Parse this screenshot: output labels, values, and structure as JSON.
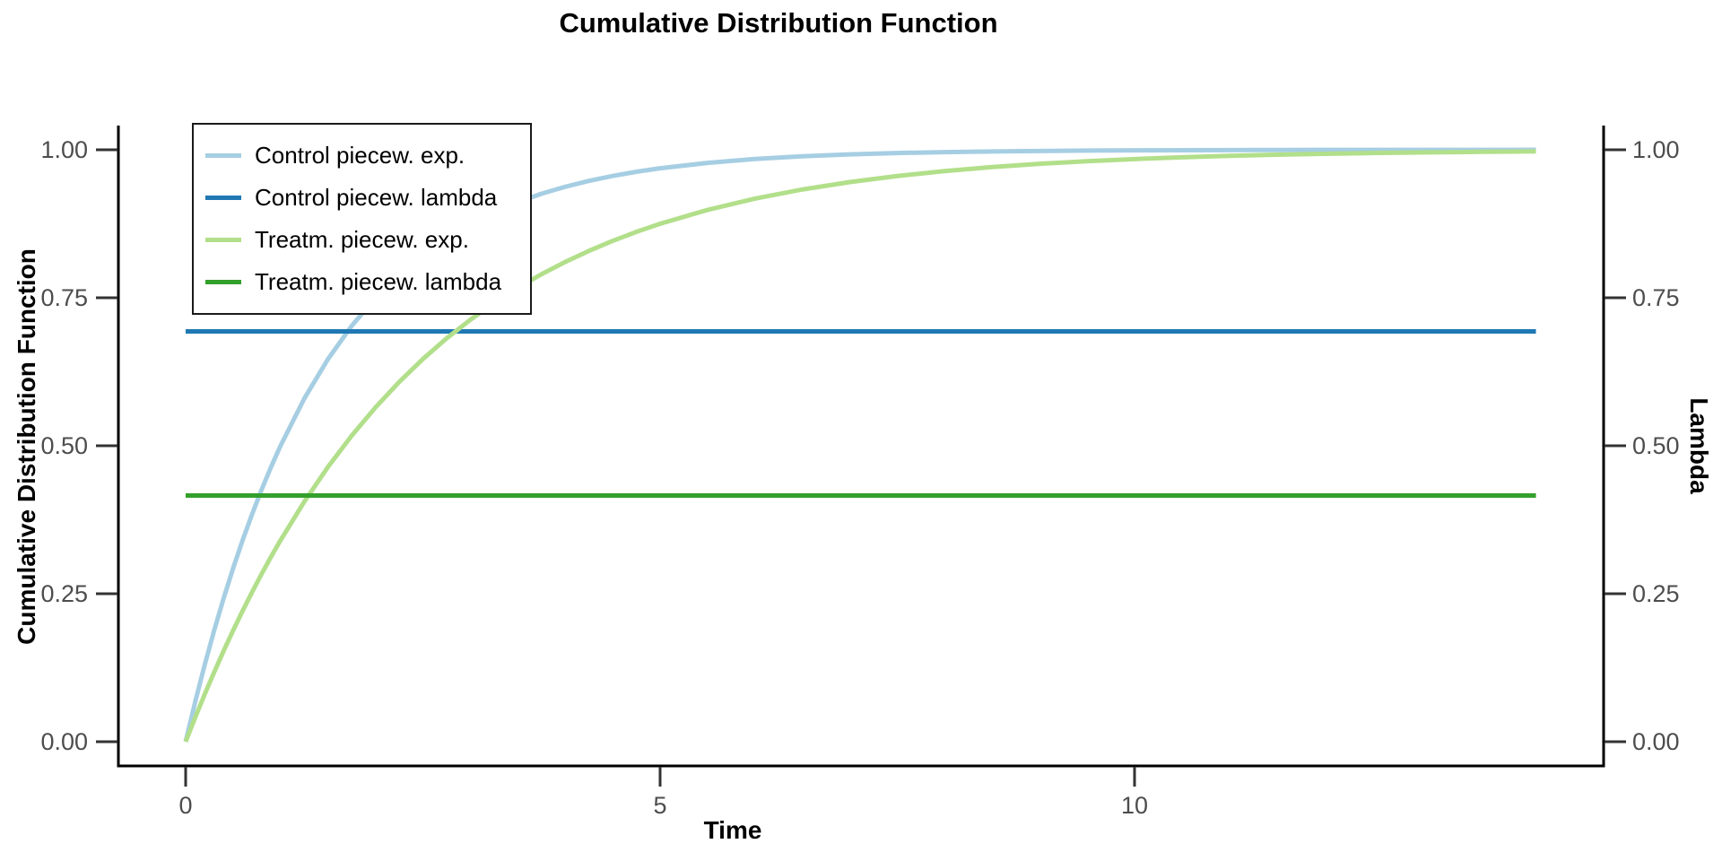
{
  "chart_data": {
    "type": "line",
    "title": "Cumulative Distribution Function",
    "xlabel": "Time",
    "ylabel_left": "Cumulative Distribution Function",
    "ylabel_right": "Lambda",
    "grid": false,
    "legend_position": "top-left",
    "xlim": [
      -0.71,
      14.95
    ],
    "ylim": [
      -0.041,
      1.041
    ],
    "x_ticks": {
      "values": [
        0,
        5,
        10
      ],
      "labels": [
        "0",
        "5",
        "10"
      ]
    },
    "y_ticks": {
      "values": [
        0,
        0.25,
        0.5,
        0.75,
        1.0
      ],
      "labels": [
        "0.00",
        "0.25",
        "0.50",
        "0.75",
        "1.00"
      ]
    },
    "x_end": 14.23,
    "x": [
      0,
      0.1,
      0.2,
      0.3,
      0.4,
      0.5,
      0.6,
      0.7,
      0.8,
      0.9,
      1,
      1.25,
      1.5,
      1.75,
      2,
      2.25,
      2.5,
      2.75,
      3,
      3.25,
      3.5,
      3.75,
      4,
      4.25,
      4.5,
      4.75,
      5,
      5.5,
      6,
      6.5,
      7,
      7.5,
      8,
      8.5,
      9,
      9.5,
      10,
      10.5,
      11,
      11.5,
      12,
      12.5,
      13,
      13.5,
      14,
      14.23
    ],
    "series": [
      {
        "id": "control-exp",
        "name": "Control piecew. exp.",
        "color": "#a6cee3",
        "values": [
          0.0,
          0.067,
          0.1294,
          0.1877,
          0.2421,
          0.2929,
          0.3402,
          0.3843,
          0.4257,
          0.4641,
          0.5,
          0.5796,
          0.6464,
          0.7025,
          0.75,
          0.7897,
          0.8232,
          0.8513,
          0.875,
          0.8949,
          0.9116,
          0.9257,
          0.9375,
          0.9474,
          0.9558,
          0.9629,
          0.9687,
          0.9779,
          0.9844,
          0.989,
          0.9922,
          0.9945,
          0.9961,
          0.9972,
          0.998,
          0.9986,
          0.999,
          0.9993,
          0.9995,
          0.9996,
          0.9998,
          0.9998,
          0.9999,
          0.9999,
          0.9999,
          1.0
        ]
      },
      {
        "id": "control-lambda",
        "name": "Control piecew. lambda",
        "color": "#1f78b4",
        "constant": 0.6931
      },
      {
        "id": "treatm-exp",
        "name": "Treatm. piecew. exp.",
        "color": "#b2df8a",
        "values": [
          0.0,
          0.0407,
          0.0798,
          0.1173,
          0.1533,
          0.1878,
          0.221,
          0.2527,
          0.2833,
          0.3125,
          0.3403,
          0.4054,
          0.4642,
          0.517,
          0.5647,
          0.6077,
          0.6465,
          0.6814,
          0.7128,
          0.7412,
          0.7667,
          0.7898,
          0.8105,
          0.8292,
          0.8461,
          0.8613,
          0.875,
          0.8984,
          0.9175,
          0.933,
          0.9455,
          0.9557,
          0.964,
          0.9708,
          0.9763,
          0.9807,
          0.9843,
          0.9873,
          0.9897,
          0.9916,
          0.9932,
          0.9945,
          0.9955,
          0.9963,
          0.997,
          0.9973
        ]
      },
      {
        "id": "treatm-lambda",
        "name": "Treatm. piecew. lambda",
        "color": "#33a02c",
        "constant": 0.4159
      }
    ]
  }
}
